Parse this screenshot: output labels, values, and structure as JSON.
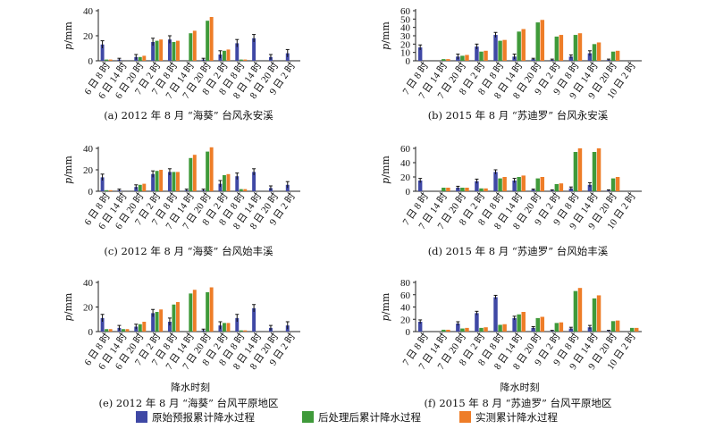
{
  "legend": {
    "items": [
      {
        "label": "原始预报累计降水过程",
        "color": "#3f48a5"
      },
      {
        "label": "后处理后累计降水过程",
        "color": "#3f9a3a"
      },
      {
        "label": "实测累计降水过程",
        "color": "#ee7d28"
      }
    ]
  },
  "chart_data": [
    {
      "type": "bar",
      "caption": "(a) 2012 年 8 月 “海葵” 台风永安溪",
      "ylabel": "p/mm",
      "xlabel": "",
      "ylim": [
        0,
        40
      ],
      "yticks": [
        0,
        20,
        40
      ],
      "categories": [
        "6 日 8 时",
        "6 日 14 时",
        "6 日 20 时",
        "7 日 2 时",
        "7 日 8 时",
        "7 日 14 时",
        "7 日 20 时",
        "8 日 2 时",
        "8 日 8 时",
        "8 日 14 时",
        "8 日 20 时",
        "9 日 2 时"
      ],
      "series": [
        {
          "name": "原始预报累计降水过程",
          "values": [
            13,
            1,
            3,
            15,
            17,
            0,
            1,
            5,
            14,
            18,
            3,
            6
          ],
          "errors": [
            3,
            1,
            2,
            3,
            3,
            0,
            1,
            3,
            3,
            3,
            2,
            3
          ]
        },
        {
          "name": "后处理后累计降水过程",
          "values": [
            1,
            0,
            3,
            16,
            15,
            22,
            32,
            8,
            1,
            0,
            0,
            0
          ]
        },
        {
          "name": "实测累计降水过程",
          "values": [
            1,
            0,
            4,
            17,
            16,
            24,
            35,
            9,
            1,
            0,
            0,
            0
          ]
        }
      ]
    },
    {
      "type": "bar",
      "caption": "(b) 2015 年 8 月 “苏迪罗” 台风永安溪",
      "ylabel": "p/mm",
      "xlabel": "",
      "ylim": [
        0,
        60
      ],
      "yticks": [
        0,
        10,
        20,
        30,
        40,
        50,
        60
      ],
      "categories": [
        "7 日 8 时",
        "7 日 14 时",
        "7 日 20 时",
        "8 日 2 时",
        "8 日 8 时",
        "8 日 14 时",
        "8 日 20 时",
        "9 日 2 时",
        "9 日 8 时",
        "9 日 14 时",
        "9 日 20 时",
        "10 日 2 时"
      ],
      "series": [
        {
          "name": "原始预报累计降水过程",
          "values": [
            16,
            0,
            5,
            17,
            31,
            5,
            2,
            1,
            5,
            9,
            1,
            0
          ],
          "errors": [
            3,
            0,
            3,
            3,
            3,
            3,
            1,
            1,
            2,
            3,
            1,
            0
          ]
        },
        {
          "name": "后处理后累计降水过程",
          "values": [
            0,
            2,
            6,
            11,
            24,
            35,
            46,
            29,
            31,
            20,
            11,
            0
          ]
        },
        {
          "name": "实测累计降水过程",
          "values": [
            0,
            2,
            7,
            12,
            25,
            38,
            49,
            31,
            33,
            22,
            12,
            0
          ]
        }
      ]
    },
    {
      "type": "bar",
      "caption": "(c) 2012 年 8 月 “海葵” 台风始丰溪",
      "ylabel": "p/mm",
      "xlabel": "",
      "ylim": [
        0,
        40
      ],
      "yticks": [
        0,
        20,
        40
      ],
      "categories": [
        "6 日 8 时",
        "6 日 14 时",
        "6 日 20 时",
        "7 日 2 时",
        "7 日 8 时",
        "7 日 14 时",
        "7 日 20 时",
        "8 日 2 时",
        "8 日 8 时",
        "8 日 14 时",
        "8 日 20 时",
        "9 日 2 时"
      ],
      "series": [
        {
          "name": "原始预报累计降水过程",
          "values": [
            13,
            1,
            4,
            16,
            18,
            1,
            1,
            7,
            14,
            18,
            3,
            6
          ],
          "errors": [
            3,
            1,
            2,
            3,
            3,
            1,
            1,
            3,
            3,
            3,
            2,
            3
          ]
        },
        {
          "name": "后处理后累计降水过程",
          "values": [
            1,
            0,
            6,
            19,
            18,
            31,
            37,
            15,
            2,
            0,
            0,
            0
          ]
        },
        {
          "name": "实测累计降水过程",
          "values": [
            1,
            0,
            7,
            20,
            18,
            34,
            41,
            16,
            2,
            0,
            0,
            0
          ]
        }
      ]
    },
    {
      "type": "bar",
      "caption": "(d) 2015 年 8 月 “苏迪罗” 台风始丰溪",
      "ylabel": "p/mm",
      "xlabel": "",
      "ylim": [
        0,
        60
      ],
      "yticks": [
        0,
        20,
        40,
        60
      ],
      "categories": [
        "7 日 8 时",
        "7 日 14 时",
        "7 日 20 时",
        "8 日 2 时",
        "8 日 8 时",
        "8 日 14 时",
        "8 日 20 时",
        "9 日 2 时",
        "9 日 8 时",
        "9 日 14 时",
        "9 日 20 时",
        "10 日 2 时"
      ],
      "series": [
        {
          "name": "原始预报累计降水过程",
          "values": [
            15,
            0,
            5,
            14,
            27,
            15,
            2,
            1,
            4,
            9,
            1,
            0
          ],
          "errors": [
            3,
            0,
            2,
            3,
            3,
            3,
            1,
            1,
            2,
            3,
            1,
            0
          ]
        },
        {
          "name": "后处理后累计降水过程",
          "values": [
            0,
            5,
            5,
            4,
            18,
            20,
            18,
            10,
            55,
            55,
            18,
            0
          ]
        },
        {
          "name": "实测累计降水过程",
          "values": [
            0,
            5,
            5,
            4,
            20,
            22,
            20,
            11,
            60,
            60,
            20,
            0
          ]
        }
      ]
    },
    {
      "type": "bar",
      "caption": "(e) 2012 年 8 月 “海葵” 台风平原地区",
      "ylabel": "p/mm",
      "xlabel": "降水时刻",
      "ylim": [
        0,
        40
      ],
      "yticks": [
        0,
        20,
        40
      ],
      "categories": [
        "6 日 8 时",
        "6 日 14 时",
        "6 日 20 时",
        "7 日 2 时",
        "7 日 8 时",
        "7 日 14 时",
        "7 日 20 时",
        "8 日 2 时",
        "8 日 8 时",
        "8 日 14 时",
        "8 日 20 时",
        "9 日 2 时"
      ],
      "series": [
        {
          "name": "原始预报累计降水过程",
          "values": [
            11,
            3,
            4,
            15,
            8,
            0,
            1,
            5,
            11,
            19,
            3,
            5
          ],
          "errors": [
            3,
            2,
            2,
            3,
            3,
            0,
            1,
            3,
            3,
            3,
            2,
            3
          ]
        },
        {
          "name": "后处理后累计降水过程",
          "values": [
            2,
            2,
            6,
            16,
            22,
            31,
            32,
            7,
            1,
            0,
            0,
            0
          ]
        },
        {
          "name": "实测累计降水过程",
          "values": [
            2,
            2,
            8,
            18,
            24,
            34,
            36,
            7,
            1,
            0,
            0,
            0
          ]
        }
      ]
    },
    {
      "type": "bar",
      "caption": "(f) 2015 年 8 月 “苏迪罗” 台风平原地区",
      "ylabel": "p/mm",
      "xlabel": "降水时刻",
      "ylim": [
        0,
        80
      ],
      "yticks": [
        0,
        20,
        40,
        60,
        80
      ],
      "categories": [
        "7 日 8 时",
        "7 日 14 时",
        "7 日 20 时",
        "8 日 2 时",
        "8 日 8 时",
        "8 日 14 时",
        "8 日 20 时",
        "9 日 2 时",
        "9 日 8 时",
        "9 日 14 时",
        "9 日 20 时",
        "10 日 2 时"
      ],
      "series": [
        {
          "name": "原始预报累计降水过程",
          "values": [
            16,
            0,
            13,
            30,
            56,
            22,
            6,
            1,
            5,
            7,
            1,
            0
          ],
          "errors": [
            3,
            0,
            3,
            3,
            3,
            3,
            2,
            1,
            2,
            3,
            1,
            0
          ]
        },
        {
          "name": "后处理后累计降水过程",
          "values": [
            0,
            3,
            5,
            6,
            11,
            28,
            22,
            14,
            66,
            54,
            17,
            6
          ]
        },
        {
          "name": "实测累计降水过程",
          "values": [
            0,
            3,
            6,
            7,
            12,
            32,
            24,
            15,
            71,
            59,
            18,
            6
          ]
        }
      ]
    }
  ]
}
